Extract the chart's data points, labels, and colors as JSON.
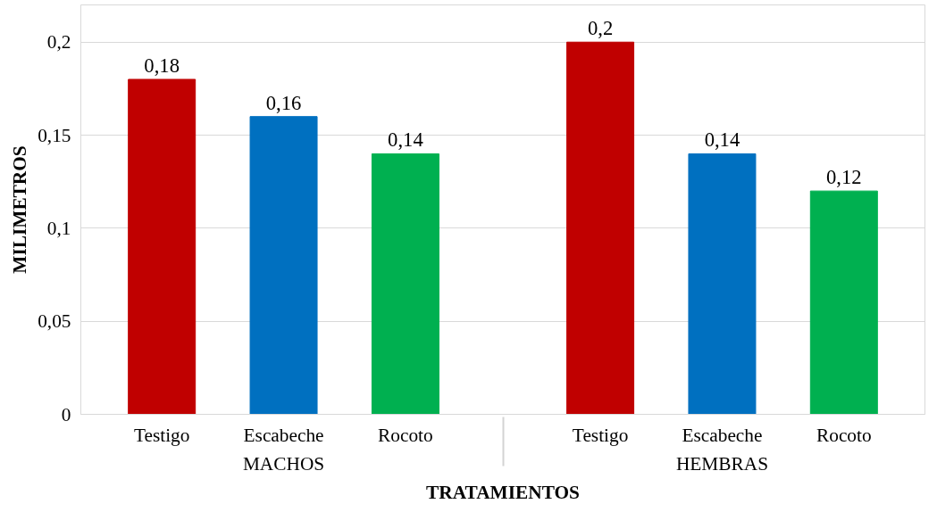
{
  "chart_data": {
    "type": "bar",
    "categories": [
      "Testigo",
      "Escabeche",
      "Rocoto",
      "Testigo",
      "Escabeche",
      "Rocoto"
    ],
    "annotations": [
      "MACHOS",
      "HEMBRAS"
    ],
    "values": [
      0.18,
      0.16,
      0.14,
      0.2,
      0.14,
      0.12
    ],
    "colors": [
      "#c00000",
      "#0070c0",
      "#00b050",
      "#c00000",
      "#0070c0",
      "#00b050"
    ],
    "value_labels": [
      "0,18",
      "0,16",
      "0,14",
      "0,2",
      "0,14",
      "0,12"
    ],
    "xlabel": "TRATAMIENTOS",
    "ylabel": "MILIMETROS",
    "ylim": [
      0,
      0.22
    ],
    "yticks": [
      {
        "value": 0,
        "label": "0"
      },
      {
        "value": 0.05,
        "label": "0,05"
      },
      {
        "value": 0.1,
        "label": "0,1"
      },
      {
        "value": 0.15,
        "label": "0,15"
      },
      {
        "value": 0.2,
        "label": "0,2"
      }
    ],
    "grid": "y"
  }
}
